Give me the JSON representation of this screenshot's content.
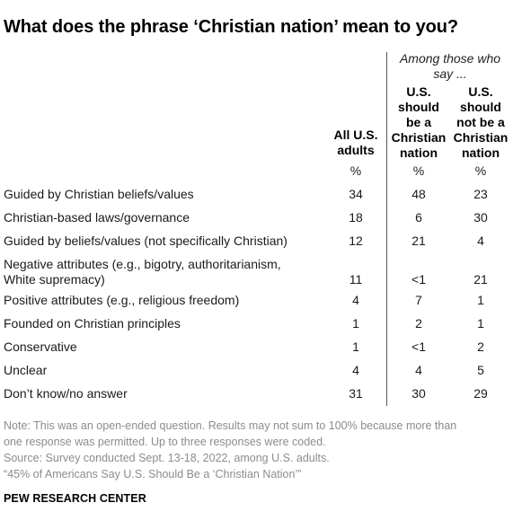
{
  "title": "What does the phrase ‘Christian nation’ mean to you?",
  "chart_data": {
    "type": "table",
    "title": "What does the phrase ‘Christian nation’ mean to you?",
    "group_header": "Among those who say ...",
    "columns": [
      {
        "label_lines": [
          "All U.S.",
          "adults"
        ],
        "unit": "%"
      },
      {
        "label_lines": [
          "U.S.",
          "should",
          "be a",
          "Christian",
          "nation"
        ],
        "unit": "%"
      },
      {
        "label_lines": [
          "U.S.",
          "should",
          "not be a",
          "Christian",
          "nation"
        ],
        "unit": "%"
      }
    ],
    "rows": [
      {
        "label_lines": [
          "Guided by Christian beliefs/values"
        ],
        "values": [
          "34",
          "48",
          "23"
        ]
      },
      {
        "label_lines": [
          "Christian-based laws/governance"
        ],
        "values": [
          "18",
          "6",
          "30"
        ]
      },
      {
        "label_lines": [
          "Guided by beliefs/values (not specifically Christian)"
        ],
        "values": [
          "12",
          "21",
          "4"
        ]
      },
      {
        "label_lines": [
          "Negative attributes (e.g., bigotry, authoritarianism,",
          "White supremacy)"
        ],
        "values": [
          "11",
          "<1",
          "21"
        ]
      },
      {
        "label_lines": [
          "Positive attributes (e.g., religious freedom)"
        ],
        "values": [
          "4",
          "7",
          "1"
        ]
      },
      {
        "label_lines": [
          "Founded on Christian principles"
        ],
        "values": [
          "1",
          "2",
          "1"
        ]
      },
      {
        "label_lines": [
          "Conservative"
        ],
        "values": [
          "1",
          "<1",
          "2"
        ]
      },
      {
        "label_lines": [
          "Unclear"
        ],
        "values": [
          "4",
          "4",
          "5"
        ]
      },
      {
        "label_lines": [
          "Don’t know/no answer"
        ],
        "values": [
          "31",
          "30",
          "29"
        ]
      }
    ]
  },
  "notes": [
    "Note: This was an open-ended question. Results may not sum to 100% because more than",
    "one response was permitted. Up to three responses were coded.",
    "Source: Survey conducted Sept. 13-18, 2022, among U.S. adults.",
    "“45% of Americans Say U.S. Should Be a ‘Christian Nation’”"
  ],
  "brand": "PEW RESEARCH CENTER",
  "colors": {
    "text": "#1a1a1a",
    "note": "#8c8c8c",
    "divider": "#555555"
  }
}
